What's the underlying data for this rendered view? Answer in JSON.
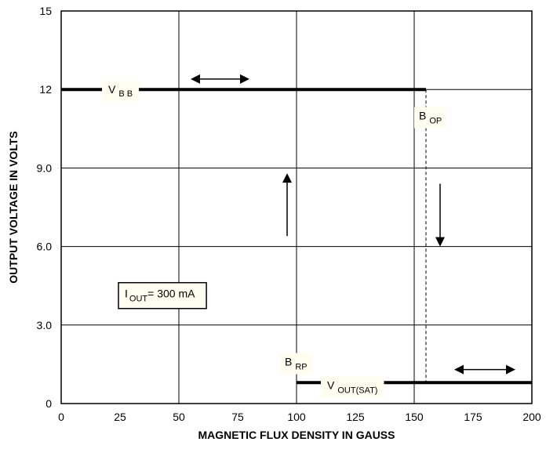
{
  "chart_data": {
    "type": "line",
    "title": "",
    "xlabel": "MAGNETIC FLUX DENSITY IN GAUSS",
    "ylabel": "OUTPUT VOLTAGE IN VOLTS",
    "xlim": [
      0,
      200
    ],
    "ylim": [
      0,
      15
    ],
    "grid": true,
    "x_ticks": [
      0,
      25,
      50,
      75,
      100,
      125,
      150,
      175,
      200
    ],
    "x_tick_labels": [
      "0",
      "25",
      "50",
      "75",
      "100",
      "125",
      "150",
      "175",
      "200"
    ],
    "y_ticks": [
      0,
      3,
      6,
      9,
      12,
      15
    ],
    "y_tick_labels": [
      "0",
      "3.0",
      "6.0",
      "9.0",
      "12",
      "15"
    ],
    "x_gridlines": [
      50,
      100,
      150
    ],
    "series": [
      {
        "segments": [
          {
            "x": [
              0,
              155
            ],
            "y": [
              12,
              12
            ]
          },
          {
            "x": [
              100,
              200
            ],
            "y": [
              0.8,
              0.8
            ]
          }
        ]
      }
    ],
    "transitions": [
      {
        "x": 155,
        "y": [
          0.8,
          12
        ],
        "direction": "down"
      },
      {
        "x": 100,
        "y": [
          0.8,
          12
        ],
        "direction": "up"
      }
    ],
    "annotations": {
      "vbb": {
        "main": "V",
        "sub": "B B",
        "x": 20,
        "y": 12
      },
      "bop": {
        "main": "B",
        "sub": "OP",
        "x": 152,
        "y": 11.0
      },
      "brp": {
        "main": "B",
        "sub": "RP",
        "x": 95,
        "y": 1.6
      },
      "vout": {
        "main": "V",
        "sub": "OUT(SAT)",
        "x": 113,
        "y": 0.7
      },
      "iout": {
        "main": "I",
        "sub": "OUT",
        "rest": "= 300 mA",
        "x": 27,
        "y": 4.2
      }
    }
  }
}
